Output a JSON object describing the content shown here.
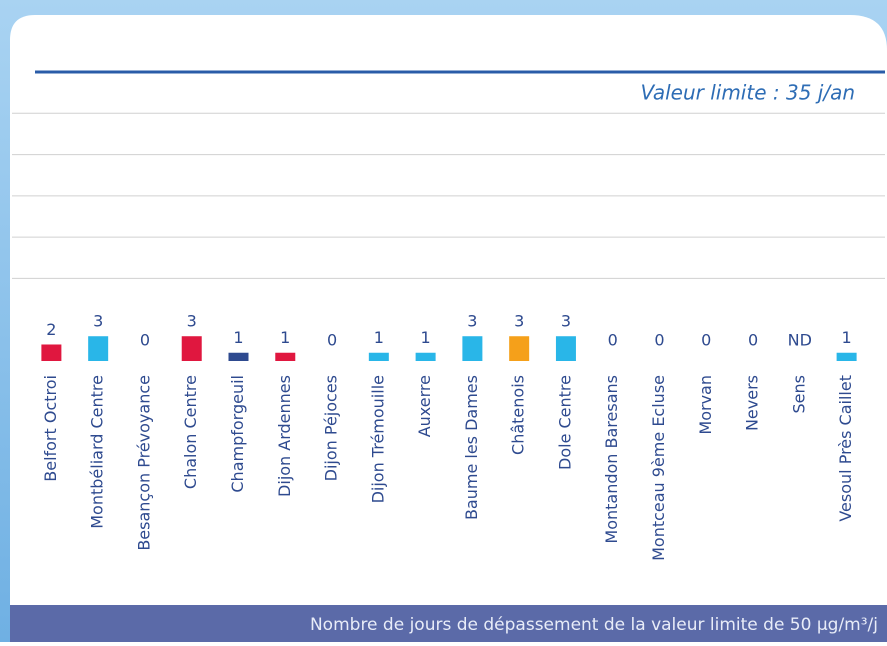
{
  "chart_data": {
    "type": "bar",
    "annotation": "Valeur limite : 35 j/an",
    "xlabel": "Nombre de jours de dépassement de la valeur limite de 50 µg/m³/j",
    "categories": [
      "Belfort Octroi",
      "Montbéliard Centre",
      "Besançon Prévoyance",
      "Chalon Centre",
      "Champforgeuil",
      "Dijon Ardennes",
      "Dijon Péjoces",
      "Dijon Trémouille",
      "Auxerre",
      "Baume les Dames",
      "Châtenois",
      "Dole Centre",
      "Montandon Baresans",
      "Montceau 9ème Ecluse",
      "Morvan",
      "Nevers",
      "Sens",
      "Vesoul Près Caillet"
    ],
    "values": [
      2,
      3,
      0,
      3,
      1,
      1,
      0,
      1,
      1,
      3,
      3,
      3,
      0,
      0,
      0,
      0,
      null,
      1
    ],
    "value_labels": [
      "2",
      "3",
      "0",
      "3",
      "1",
      "1",
      "0",
      "1",
      "1",
      "3",
      "3",
      "3",
      "0",
      "0",
      "0",
      "0",
      "ND",
      "1"
    ],
    "colors": [
      "#e0173f",
      "#29b6e8",
      "#29b6e8",
      "#e0173f",
      "#2e4a8f",
      "#e0173f",
      "#29b6e8",
      "#29b6e8",
      "#29b6e8",
      "#29b6e8",
      "#f5a01a",
      "#29b6e8",
      "#29b6e8",
      "#29b6e8",
      "#29b6e8",
      "#29b6e8",
      "#29b6e8",
      "#29b6e8"
    ],
    "ylim": [
      0,
      35
    ],
    "yticks": [
      10,
      15,
      20,
      25,
      30
    ],
    "limit": 35,
    "grid": true
  }
}
